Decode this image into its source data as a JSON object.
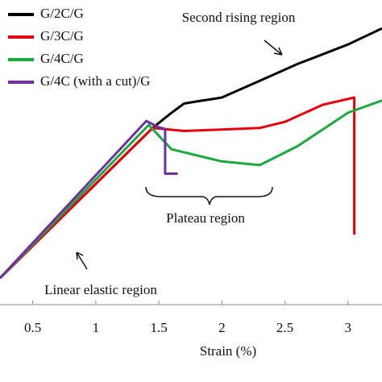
{
  "chart_data": {
    "type": "line",
    "x_label": "Strain (%)",
    "annotations": [
      "Second rising region",
      "Plateau region",
      "Linear elastic region"
    ],
    "xlim": [
      0.24,
      3.27
    ],
    "xticks": [
      0.5,
      1,
      1.5,
      2,
      2.5,
      3
    ],
    "ylim": [
      0,
      100
    ],
    "legend": "top-left",
    "series": [
      {
        "name": "G/2C/G",
        "color": "#000000",
        "x": [
          0.24,
          1.45,
          1.6,
          1.7,
          1.8,
          2.0,
          2.3,
          2.6,
          3.0,
          3.27
        ],
        "values": [
          8.7,
          58,
          63,
          66,
          66.7,
          68,
          73.5,
          79,
          85.4,
          90.7
        ]
      },
      {
        "name": "G/3C/G",
        "color": "#e8000b",
        "x": [
          0.24,
          1.45,
          1.7,
          2.0,
          2.3,
          2.5,
          2.8,
          3.05,
          3.05
        ],
        "values": [
          8.7,
          58,
          57,
          57.5,
          58,
          60,
          65.6,
          68,
          23
        ]
      },
      {
        "name": "G/4C/G",
        "color": "#1aaa3c",
        "x": [
          0.24,
          1.42,
          1.6,
          2.0,
          2.3,
          2.6,
          3.0,
          3.27
        ],
        "values": [
          8.7,
          59,
          51,
          47,
          45.8,
          52,
          63,
          67
        ]
      },
      {
        "name": "G/4C (with a cut)/G",
        "color": "#7030a0",
        "x": [
          0.24,
          1.4,
          1.5,
          1.55,
          1.55,
          1.65
        ],
        "values": [
          8.7,
          60.3,
          58.2,
          57.7,
          43,
          43
        ]
      }
    ]
  }
}
